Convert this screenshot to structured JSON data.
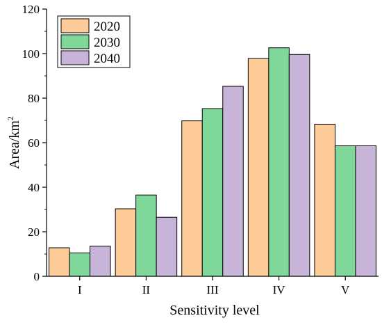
{
  "chart_data": {
    "type": "bar",
    "title": "",
    "xlabel": "Sensitivity level",
    "ylabel": "Area/km",
    "ylabel_superscript": "2",
    "categories": [
      "I",
      "II",
      "III",
      "IV",
      "V"
    ],
    "ylim": [
      0,
      120
    ],
    "yticks": [
      0,
      20,
      40,
      60,
      80,
      100,
      120
    ],
    "grid": false,
    "legend_position": "top-left",
    "series": [
      {
        "name": "2020",
        "color": "#FECC99",
        "values": [
          12.8,
          30.3,
          69.8,
          97.8,
          68.3
        ]
      },
      {
        "name": "2030",
        "color": "#7FD79A",
        "values": [
          10.5,
          36.5,
          75.3,
          102.6,
          58.6
        ]
      },
      {
        "name": "2040",
        "color": "#C8B3D9",
        "values": [
          13.5,
          26.5,
          85.3,
          99.6,
          58.6
        ]
      }
    ]
  }
}
